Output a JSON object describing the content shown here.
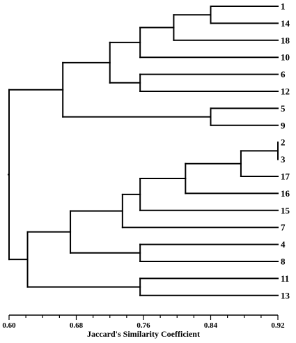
{
  "diagram": {
    "type": "dendrogram",
    "leaves": [
      "1",
      "14",
      "18",
      "10",
      "6",
      "12",
      "5",
      "9",
      "2",
      "3",
      "17",
      "16",
      "15",
      "7",
      "4",
      "8",
      "11",
      "13"
    ],
    "merges": [
      {
        "id": "A",
        "children": [
          "1",
          "14"
        ],
        "similarity": 0.84
      },
      {
        "id": "B",
        "children": [
          "A",
          "18"
        ],
        "similarity": 0.796
      },
      {
        "id": "C",
        "children": [
          "B",
          "10"
        ],
        "similarity": 0.756
      },
      {
        "id": "D",
        "children": [
          "6",
          "12"
        ],
        "similarity": 0.756
      },
      {
        "id": "E",
        "children": [
          "C",
          "D"
        ],
        "similarity": 0.72
      },
      {
        "id": "F",
        "children": [
          "5",
          "9"
        ],
        "similarity": 0.84
      },
      {
        "id": "G",
        "children": [
          "E",
          "F"
        ],
        "similarity": 0.664
      },
      {
        "id": "H",
        "children": [
          "2",
          "3"
        ],
        "similarity": 0.92
      },
      {
        "id": "I",
        "children": [
          "H",
          "17"
        ],
        "similarity": 0.876
      },
      {
        "id": "J",
        "children": [
          "I",
          "16"
        ],
        "similarity": 0.81
      },
      {
        "id": "K",
        "children": [
          "J",
          "15"
        ],
        "similarity": 0.756
      },
      {
        "id": "L",
        "children": [
          "K",
          "7"
        ],
        "similarity": 0.735
      },
      {
        "id": "M",
        "children": [
          "4",
          "8"
        ],
        "similarity": 0.756
      },
      {
        "id": "N",
        "children": [
          "L",
          "M"
        ],
        "similarity": 0.673
      },
      {
        "id": "O",
        "children": [
          "11",
          "13"
        ],
        "similarity": 0.756
      },
      {
        "id": "P",
        "children": [
          "N",
          "O"
        ],
        "similarity": 0.622
      },
      {
        "id": "Q",
        "children": [
          "G",
          "P"
        ],
        "similarity": 0.6
      }
    ],
    "axis": {
      "title": "Jaccard's Similarity Coefficient",
      "range": [
        0.6,
        0.92
      ],
      "major_ticks": [
        "0.60",
        "0.68",
        "0.76",
        "0.84",
        "0.92"
      ],
      "minor_step": 0.02
    }
  }
}
